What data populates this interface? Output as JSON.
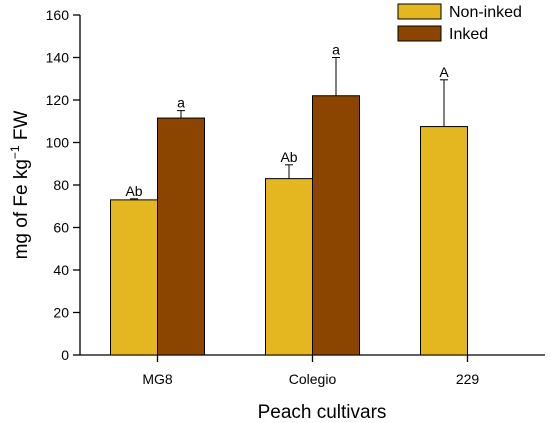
{
  "chart_data": {
    "type": "bar",
    "categories": [
      "MG8",
      "Colegio",
      "229"
    ],
    "series": [
      {
        "name": "Non-inked",
        "color": "#E4B620",
        "values": [
          73,
          83,
          107.5
        ],
        "errors": [
          0.5,
          6.5,
          22
        ],
        "labels": [
          "Ab",
          "Ab",
          "A"
        ]
      },
      {
        "name": "Inked",
        "color": "#8B4500",
        "values": [
          111.5,
          122,
          null
        ],
        "errors": [
          3.5,
          18,
          null
        ],
        "labels": [
          "a",
          "a",
          null
        ]
      }
    ],
    "ylabel_prefix": "mg of Fe kg",
    "ylabel_superscript": "−1",
    "ylabel_suffix": " FW",
    "xlabel": "Peach cultivars",
    "ylim": [
      0,
      160
    ],
    "yticks": [
      "0",
      "20",
      "40",
      "60",
      "80",
      "100",
      "120",
      "140",
      "160"
    ],
    "grid": false,
    "legend_position": "top-right"
  }
}
